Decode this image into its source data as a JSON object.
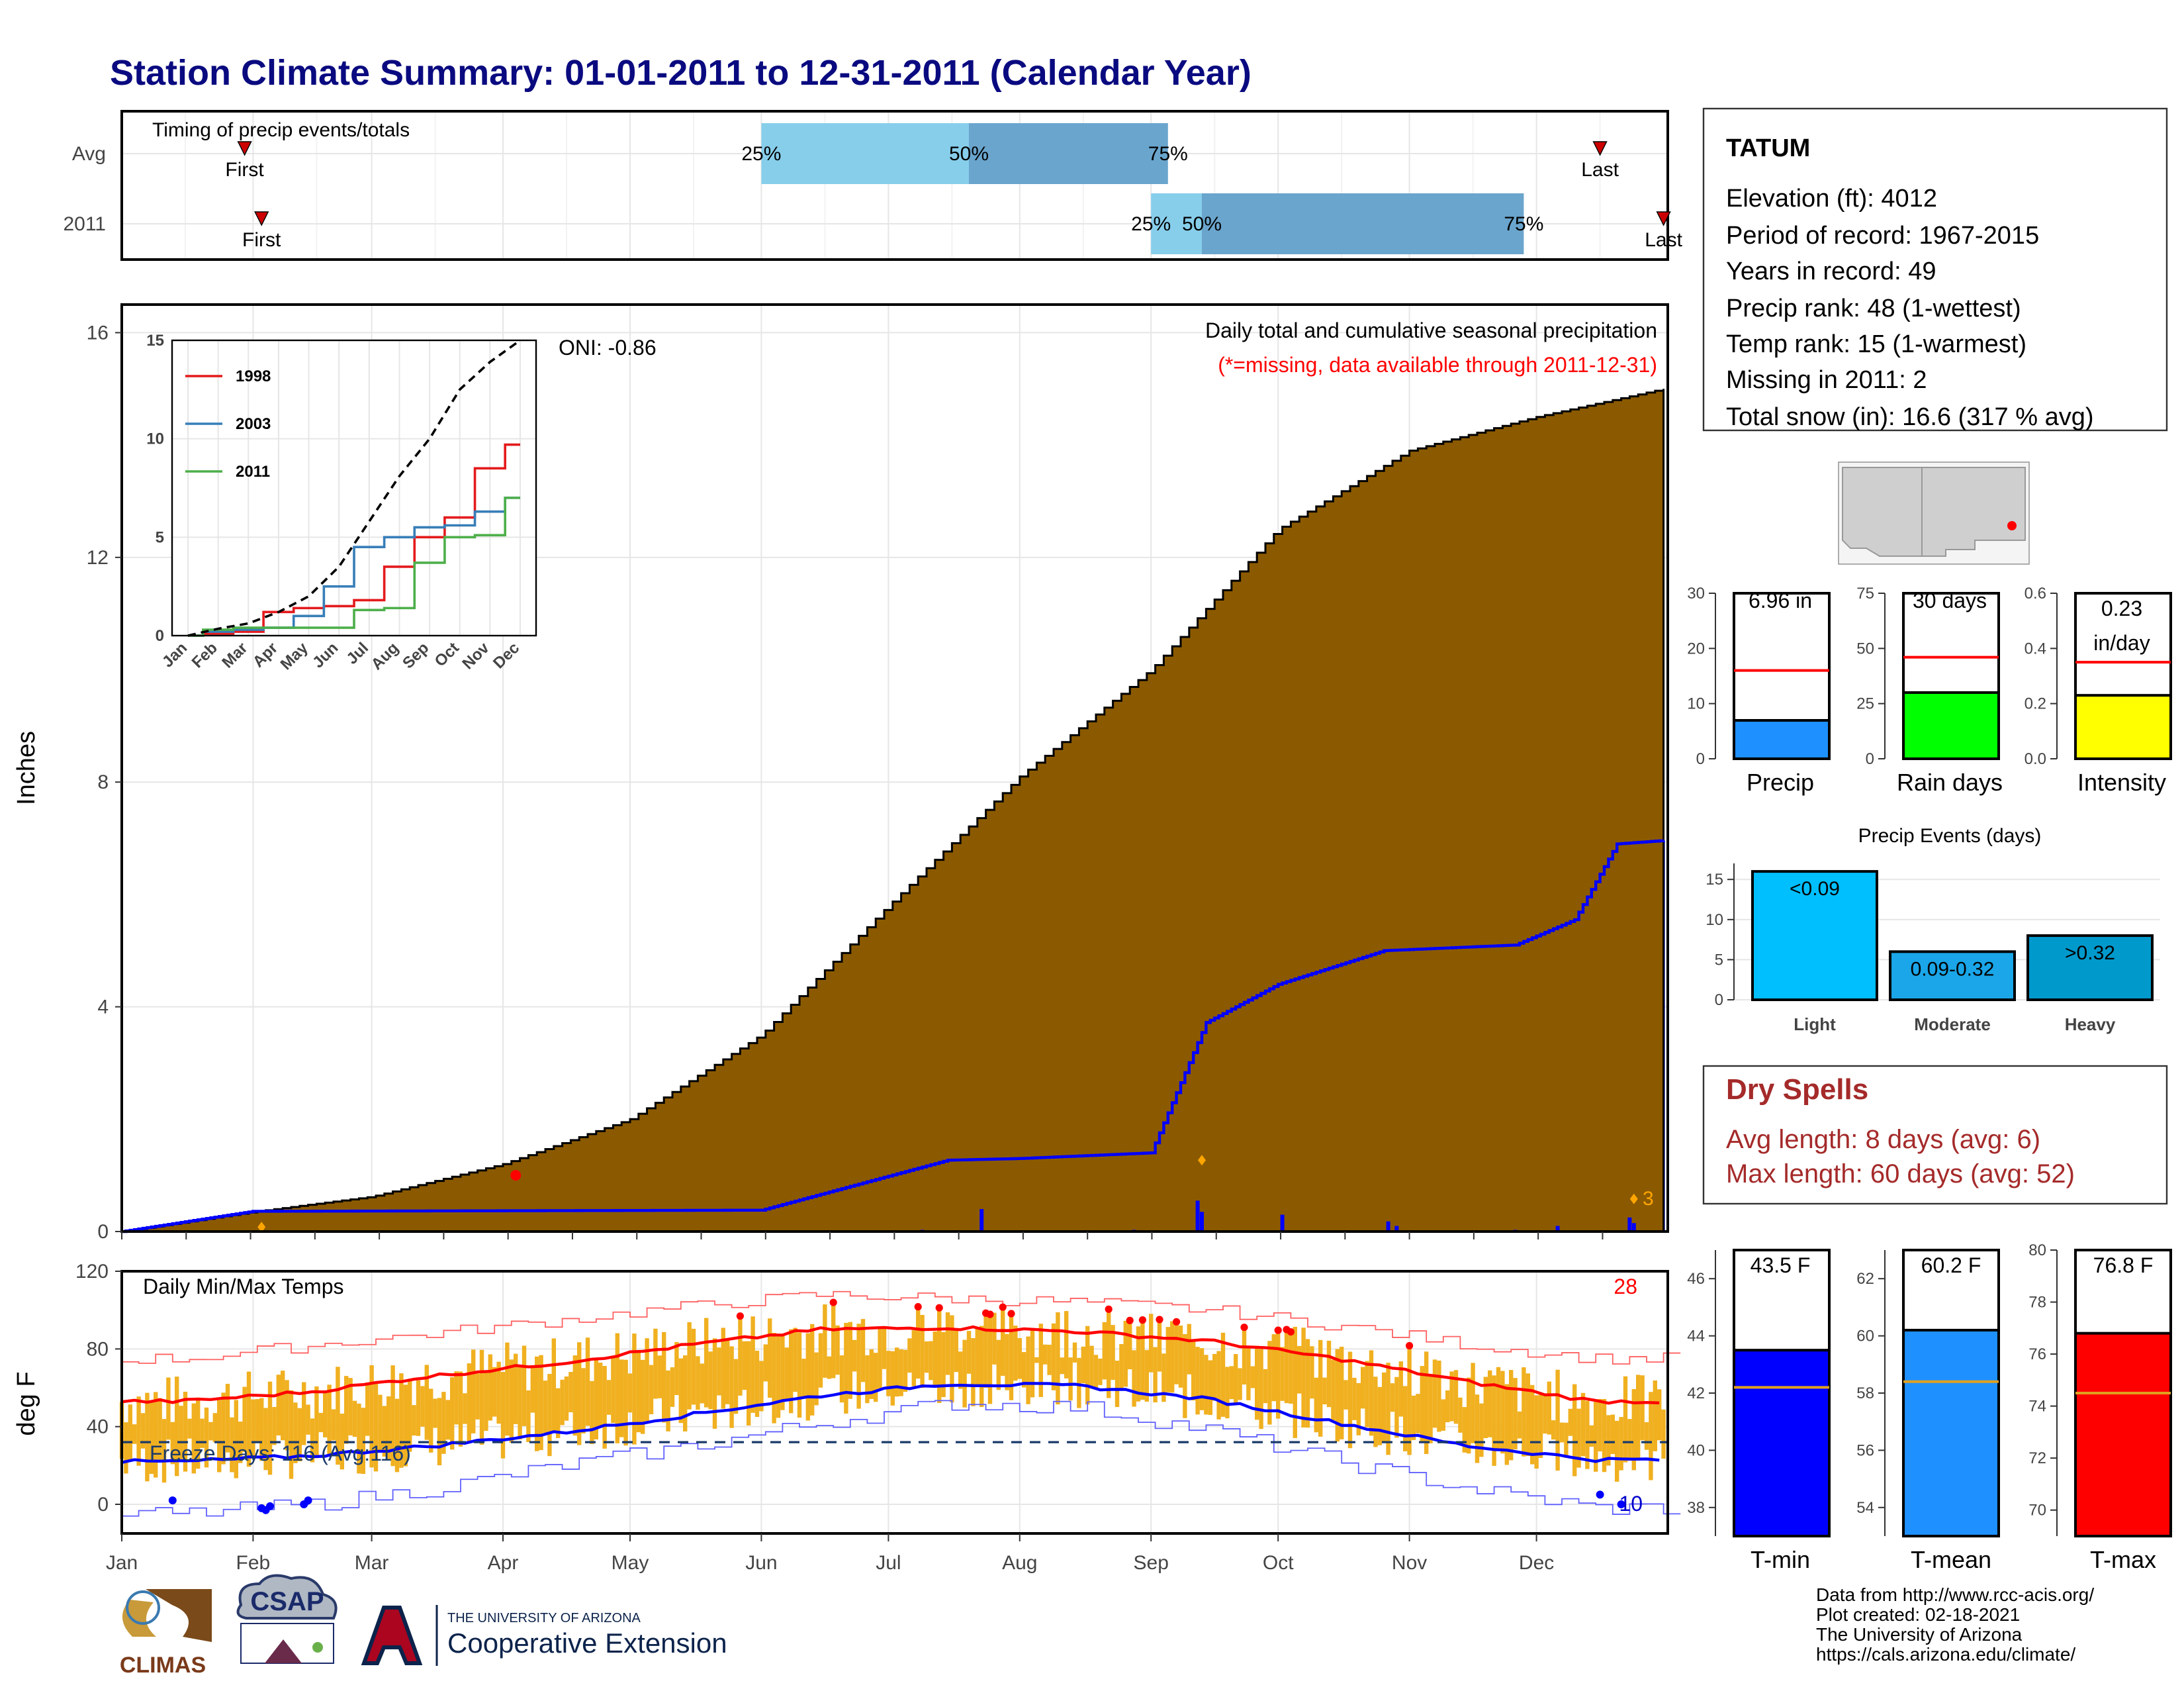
{
  "title": "Station Climate Summary: 01-01-2011 to 12-31-2011 (Calendar Year)",
  "timing": {
    "label": "Timing of precip events/totals",
    "rows": [
      {
        "name": "Avg",
        "first": "First",
        "last": "Last",
        "p25": "25%",
        "p50": "50%",
        "p75": "75%",
        "first_doy": 30,
        "last_doy": 350,
        "p25_doy": 152,
        "p50_doy": 201,
        "p75_doy": 248
      },
      {
        "name": "2011",
        "first": "First",
        "last": "Last",
        "p25": "25%",
        "p50": "50%",
        "p75": "75%",
        "first_doy": 34,
        "last_doy": 365,
        "p25_doy": 244,
        "p50_doy": 256,
        "p75_doy": 332
      }
    ]
  },
  "station": {
    "name": "TATUM",
    "lines": [
      "Elevation (ft): 4012",
      "Period of record: 1967-2015",
      "Years in record: 49",
      "Precip rank: 48 (1-wettest)",
      "Temp rank: 15 (1-warmest)",
      "Missing in 2011: 2",
      "Total snow (in): 16.6 (317 % avg)"
    ]
  },
  "precip_panel": {
    "ylabel": "Inches",
    "title": "Daily total and cumulative seasonal precipitation",
    "note": "(*=missing, data available through 2011-12-31)",
    "oni": "ONI: -0.86",
    "yticks": [
      "0",
      "4",
      "8",
      "12",
      "16"
    ],
    "marker_label": "3"
  },
  "months": [
    "Jan",
    "Feb",
    "Mar",
    "Apr",
    "May",
    "Jun",
    "Jul",
    "Aug",
    "Sep",
    "Oct",
    "Nov",
    "Dec"
  ],
  "inset": {
    "yticks": [
      "0",
      "5",
      "10",
      "15"
    ],
    "legend": [
      "1998",
      "2003",
      "2011"
    ]
  },
  "temp_panel": {
    "label": "Daily Min/Max Temps",
    "ylabel": "deg F",
    "yticks": [
      "0",
      "40",
      "80",
      "120"
    ],
    "freeze": "Freeze Days: 116 (Avg:116)",
    "hot_count": "28",
    "cold_count": "10"
  },
  "bars_precip": {
    "precip": {
      "label": "6.96 in",
      "xlabel": "Precip",
      "ticks": [
        "0",
        "10",
        "20",
        "30"
      ]
    },
    "raindays": {
      "label": "30 days",
      "xlabel": "Rain days",
      "ticks": [
        "0",
        "25",
        "50",
        "75"
      ]
    },
    "intensity": {
      "label1": "0.23",
      "label2": "in/day",
      "xlabel": "Intensity",
      "ticks": [
        "0.0",
        "0.2",
        "0.4",
        "0.6"
      ]
    }
  },
  "events": {
    "title": "Precip Events (days)",
    "ticks": [
      "0",
      "5",
      "10",
      "15"
    ]
  },
  "dry_spells": {
    "title": "Dry Spells",
    "avg": "Avg length: 8 days (avg: 6)",
    "max": "Max length: 60 days (avg: 52)"
  },
  "temp_bars": {
    "tmin": {
      "label": "43.5 F",
      "xlabel": "T-min",
      "ticks": [
        "38",
        "40",
        "42",
        "44",
        "46"
      ]
    },
    "tmean": {
      "label": "60.2 F",
      "xlabel": "T-mean",
      "ticks": [
        "54",
        "56",
        "58",
        "60",
        "62"
      ]
    },
    "tmax": {
      "label": "76.8 F",
      "xlabel": "T-max",
      "ticks": [
        "70",
        "72",
        "74",
        "76",
        "78",
        "80"
      ]
    }
  },
  "footer": {
    "lines": [
      "Data from http://www.rcc-acis.org/",
      "Plot created: 02-18-2021",
      "The University of Arizona",
      "https://cals.arizona.edu/climate/"
    ],
    "logo1": "CLIMAS",
    "logo2": "CSAP",
    "logo3_small": "THE UNIVERSITY OF ARIZONA",
    "logo3_big": "Cooperative Extension"
  },
  "colors": {
    "cumulative_fill": "#8b5a00",
    "avg_fill": "#e0e0e0",
    "daily_bar": "#0000ff",
    "tmax_line": "#ff0000",
    "tmin_line": "#0000ff",
    "range_bar": "#f0b020",
    "pct_light": "#87ceeb",
    "pct_dark": "#6aa5cd"
  },
  "chart_data": [
    {
      "type": "area",
      "title": "Daily total and cumulative seasonal precipitation",
      "ylabel": "Inches",
      "ylim": [
        0,
        16.5
      ],
      "series": [
        {
          "name": "average cumulative",
          "x": [
            "Jan 1",
            "Feb 1",
            "Mar 1",
            "Apr 1",
            "May 1",
            "Jun 1",
            "Jul 1",
            "Aug 1",
            "Sep 1",
            "Oct 1",
            "Nov 1",
            "Dec 1",
            "Dec 31"
          ],
          "values": [
            0.0,
            0.35,
            0.62,
            1.2,
            2.0,
            3.5,
            5.8,
            8.1,
            10.0,
            12.5,
            13.9,
            14.5,
            15.0
          ]
        },
        {
          "name": "2011 cumulative",
          "x": [
            "Jan 1",
            "Feb 1",
            "Jun 1",
            "Jul 15",
            "Aug 1",
            "Sep 1",
            "Sep 14",
            "Oct 1",
            "Oct 26",
            "Nov 26",
            "Dec 10",
            "Dec 20",
            "Dec 31"
          ],
          "values": [
            0.0,
            0.36,
            0.38,
            1.27,
            1.3,
            1.4,
            3.72,
            4.4,
            5.0,
            5.1,
            5.55,
            6.9,
            6.96
          ]
        }
      ]
    },
    {
      "type": "line",
      "x": [
        "Jan",
        "Feb",
        "Mar",
        "Apr",
        "May",
        "Jun",
        "Jul",
        "Aug",
        "Sep",
        "Oct",
        "Nov",
        "Dec"
      ],
      "ylim": [
        0,
        15
      ],
      "series": [
        {
          "name": "1998",
          "values": [
            0.0,
            0.1,
            0.2,
            1.2,
            1.4,
            1.5,
            1.8,
            3.5,
            5.0,
            6.0,
            8.5,
            9.7
          ]
        },
        {
          "name": "2003",
          "values": [
            0.0,
            0.2,
            0.3,
            0.4,
            1.0,
            2.5,
            4.5,
            5.0,
            5.5,
            5.6,
            6.3,
            7.0
          ]
        },
        {
          "name": "2011",
          "values": [
            0.0,
            0.3,
            0.4,
            0.4,
            0.4,
            0.4,
            1.3,
            1.4,
            3.7,
            5.0,
            5.1,
            7.0
          ]
        },
        {
          "name": "average",
          "values": [
            0.0,
            0.35,
            0.62,
            1.2,
            2.0,
            3.5,
            5.8,
            8.1,
            10.0,
            12.5,
            13.9,
            15.0
          ]
        }
      ]
    },
    {
      "type": "line",
      "title": "Daily Min/Max Temps",
      "ylabel": "deg F",
      "ylim": [
        -15,
        120
      ],
      "x": [
        "Jan",
        "Feb",
        "Mar",
        "Apr",
        "May",
        "Jun",
        "Jul",
        "Aug",
        "Sep",
        "Oct",
        "Nov",
        "Dec"
      ],
      "series": [
        {
          "name": "avg max",
          "values": [
            53,
            58,
            66,
            73,
            82,
            90,
            91,
            89,
            84,
            75,
            63,
            53
          ]
        },
        {
          "name": "avg min",
          "values": [
            22,
            25,
            30,
            37,
            46,
            56,
            62,
            61,
            54,
            42,
            30,
            23
          ]
        },
        {
          "name": "record max",
          "values": [
            75,
            82,
            88,
            95,
            102,
            108,
            106,
            104,
            100,
            92,
            82,
            75
          ]
        },
        {
          "name": "record min",
          "values": [
            -5,
            0,
            8,
            20,
            30,
            42,
            52,
            50,
            38,
            22,
            8,
            -2
          ]
        }
      ],
      "hline": 32
    },
    {
      "type": "bar",
      "categories": [
        "Precip",
        "Rain days",
        "Intensity"
      ],
      "values": [
        6.96,
        30,
        0.23
      ],
      "averages": [
        16,
        46,
        0.35
      ],
      "ylim": [
        [
          0,
          30
        ],
        [
          0,
          75
        ],
        [
          0,
          0.6
        ]
      ]
    },
    {
      "type": "bar",
      "title": "Precip Events (days)",
      "categories": [
        "Light",
        "Moderate",
        "Heavy"
      ],
      "labels": [
        "<0.09",
        "0.09-0.32",
        ">0.32"
      ],
      "values": [
        16,
        6,
        8
      ],
      "ylim": [
        0,
        17
      ]
    },
    {
      "type": "bar",
      "categories": [
        "T-min",
        "T-mean",
        "T-max"
      ],
      "values": [
        43.5,
        60.2,
        76.8
      ],
      "averages": [
        42.2,
        58.4,
        74.5
      ],
      "ylim": [
        [
          37,
          47
        ],
        [
          53,
          63
        ],
        [
          69,
          80
        ]
      ]
    }
  ]
}
